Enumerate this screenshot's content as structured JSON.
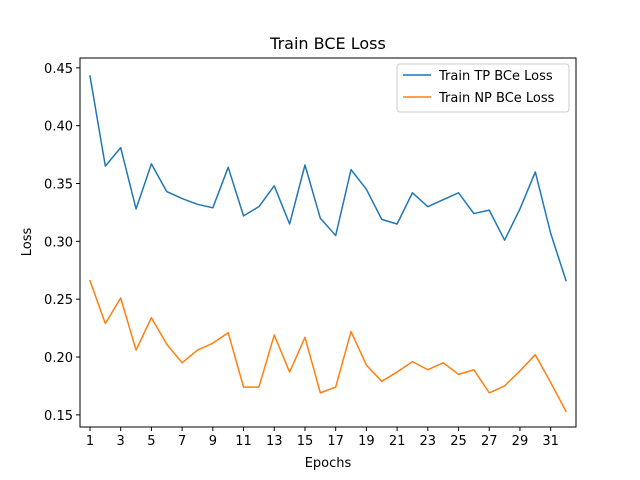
{
  "chart_data": {
    "type": "line",
    "title": "Train BCE Loss",
    "xlabel": "Epochs",
    "ylabel": "Loss",
    "xlim": [
      0.35,
      32.65
    ],
    "ylim": [
      0.1395,
      0.4585
    ],
    "xticks": [
      1,
      3,
      5,
      7,
      9,
      11,
      13,
      15,
      17,
      19,
      21,
      23,
      25,
      27,
      29,
      31
    ],
    "yticks": [
      0.15,
      0.2,
      0.25,
      0.3,
      0.35,
      0.4,
      0.45
    ],
    "ytick_labels": [
      "0.15",
      "0.20",
      "0.25",
      "0.30",
      "0.35",
      "0.40",
      "0.45"
    ],
    "grid": false,
    "legend_position": "top-right",
    "x": [
      1,
      2,
      3,
      4,
      5,
      6,
      7,
      8,
      9,
      10,
      11,
      12,
      13,
      14,
      15,
      16,
      17,
      18,
      19,
      20,
      21,
      22,
      23,
      24,
      25,
      26,
      27,
      28,
      29,
      30,
      31,
      32
    ],
    "series": [
      {
        "name": "Train TP BCe Loss",
        "color": "#1f77b4",
        "values": [
          0.443,
          0.365,
          0.381,
          0.328,
          0.367,
          0.343,
          0.337,
          0.332,
          0.329,
          0.364,
          0.322,
          0.33,
          0.348,
          0.315,
          0.366,
          0.32,
          0.305,
          0.362,
          0.345,
          0.319,
          0.315,
          0.342,
          0.33,
          0.336,
          0.342,
          0.324,
          0.327,
          0.301,
          0.328,
          0.36,
          0.307,
          0.266
        ]
      },
      {
        "name": "Train NP BCe Loss",
        "color": "#ff7f0e",
        "values": [
          0.266,
          0.229,
          0.251,
          0.206,
          0.234,
          0.211,
          0.195,
          0.206,
          0.212,
          0.221,
          0.174,
          0.174,
          0.219,
          0.187,
          0.217,
          0.169,
          0.174,
          0.222,
          0.193,
          0.179,
          0.187,
          0.196,
          0.189,
          0.195,
          0.185,
          0.189,
          0.169,
          0.175,
          0.188,
          0.202,
          0.178,
          0.153
        ]
      }
    ]
  }
}
